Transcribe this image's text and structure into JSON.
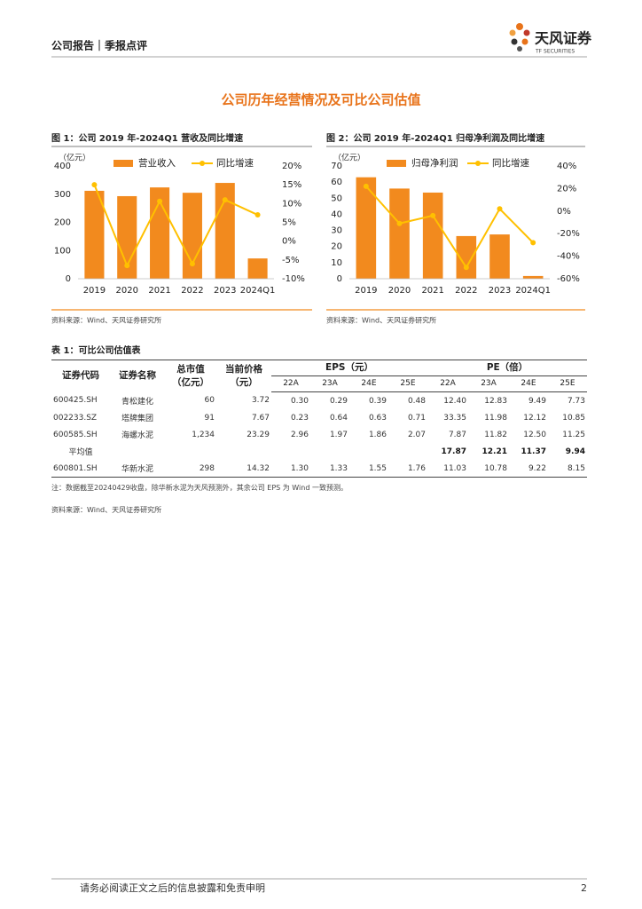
{
  "header": {
    "left": "公司报告｜季报点评",
    "logo": "天风证券",
    "logo_sub": "TF SECURITIES"
  },
  "section_title": "公司历年经营情况及可比公司估值",
  "chart_data": [
    {
      "type": "bar_line",
      "title": "图 1：公司 2019 年-2024Q1 营收及同比增速",
      "unit": "（亿元）",
      "categories": [
        "2019",
        "2020",
        "2021",
        "2022",
        "2023",
        "2024Q1"
      ],
      "series": [
        {
          "name": "营业收入",
          "type": "bar",
          "color": "#f28a1e",
          "values": [
            312,
            293,
            324,
            305,
            340,
            72
          ]
        },
        {
          "name": "同比增速",
          "type": "line",
          "axis": "y2",
          "color": "#ffc000",
          "values": [
            15,
            -6.5,
            10.6,
            -6,
            11,
            7
          ]
        }
      ],
      "ylim": [
        0,
        400
      ],
      "yticks": [
        0,
        100,
        200,
        300,
        400
      ],
      "y2lim": [
        -10,
        20
      ],
      "y2ticks": [
        {
          "value": -10,
          "label": "-10%"
        },
        {
          "value": -5,
          "label": "-5%"
        },
        {
          "value": 0,
          "label": "0%"
        },
        {
          "value": 5,
          "label": "5%"
        },
        {
          "value": 10,
          "label": "10%"
        },
        {
          "value": 15,
          "label": "15%"
        },
        {
          "value": 20,
          "label": "20%"
        }
      ],
      "source": "资料来源：Wind、天风证券研究所"
    },
    {
      "type": "bar_line",
      "title": "图 2：公司 2019 年-2024Q1 归母净利润及同比增速",
      "unit": "（亿元）",
      "categories": [
        "2019",
        "2020",
        "2021",
        "2022",
        "2023",
        "2024Q1"
      ],
      "series": [
        {
          "name": "归母净利润",
          "type": "bar",
          "color": "#f28a1e",
          "values": [
            63,
            56,
            53.5,
            26.5,
            27.5,
            1.7
          ]
        },
        {
          "name": "同比增速",
          "type": "line",
          "axis": "y2",
          "color": "#ffc000",
          "values": [
            22,
            -11,
            -4,
            -50,
            2,
            -28
          ]
        }
      ],
      "ylim": [
        0,
        70
      ],
      "yticks": [
        0,
        10,
        20,
        30,
        40,
        50,
        60,
        70
      ],
      "y2lim": [
        -60,
        40
      ],
      "y2ticks": [
        {
          "value": -60,
          "label": "-60%"
        },
        {
          "value": -40,
          "label": "-40%"
        },
        {
          "value": -20,
          "label": "-20%"
        },
        {
          "value": 0,
          "label": "0%"
        },
        {
          "value": 20,
          "label": "20%"
        },
        {
          "value": 40,
          "label": "40%"
        }
      ],
      "source": "资料来源：Wind、天风证券研究所"
    }
  ],
  "table": {
    "title": "表 1：可比公司估值表",
    "columns": [
      [
        "证券代码"
      ],
      [
        "证券名称"
      ],
      [
        "总市值",
        "（亿元）"
      ],
      [
        "当前价格",
        "（元）"
      ]
    ],
    "groups": [
      "EPS（元）",
      "PE（倍）"
    ],
    "sub_columns": [
      "22A",
      "23A",
      "24E",
      "25E",
      "22A",
      "23A",
      "24E",
      "25E"
    ],
    "rows": [
      [
        "600425.SH",
        "青松建化",
        "60",
        "3.72",
        "0.30",
        "0.29",
        "0.39",
        "0.48",
        "12.40",
        "12.83",
        "9.49",
        "7.73"
      ],
      [
        "002233.SZ",
        "塔牌集团",
        "91",
        "7.67",
        "0.23",
        "0.64",
        "0.63",
        "0.71",
        "33.35",
        "11.98",
        "12.12",
        "10.85"
      ],
      [
        "600585.SH",
        "海螺水泥",
        "1,234",
        "23.29",
        "2.96",
        "1.97",
        "1.86",
        "2.07",
        "7.87",
        "11.82",
        "12.50",
        "11.25"
      ]
    ],
    "average": {
      "label": "平均值",
      "values": [
        "17.87",
        "12.21",
        "11.37",
        "9.94"
      ]
    },
    "other_rows": [
      [
        "600801.SH",
        "华新水泥",
        "298",
        "14.32",
        "1.30",
        "1.33",
        "1.55",
        "1.76",
        "11.03",
        "10.78",
        "9.22",
        "8.15"
      ]
    ],
    "note": "注：数据截至20240429收盘，除华新水泥为天风预测外，其余公司 EPS 为 Wind 一致预测。",
    "source": "资料来源：Wind、天风证券研究所"
  },
  "footer": {
    "disclaimer": "请务必阅读正文之后的信息披露和免责申明",
    "page": 2
  }
}
